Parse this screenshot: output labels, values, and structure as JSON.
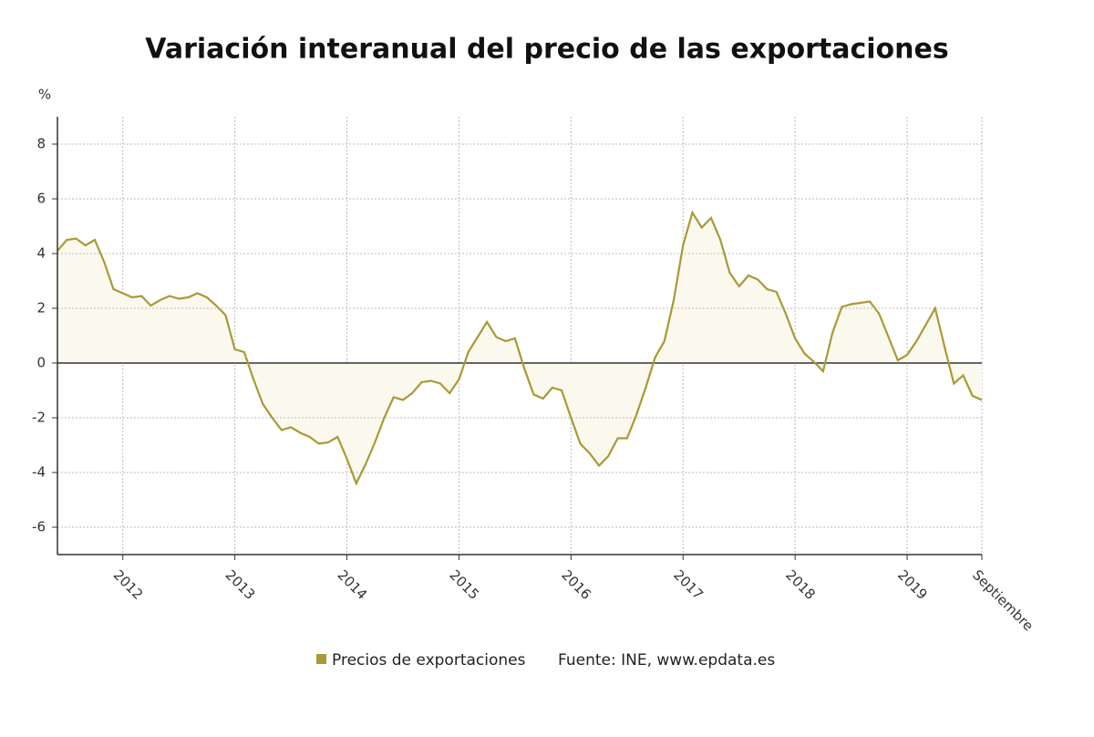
{
  "chart_data": {
    "type": "line",
    "title": "Variación interanual del precio de las exportaciones",
    "y_unit": "%",
    "source": "Fuente: INE, www.epdata.es",
    "categories": [
      null,
      null,
      null,
      null,
      null,
      null,
      null,
      "2012",
      null,
      null,
      null,
      null,
      null,
      null,
      null,
      null,
      null,
      null,
      null,
      "2013",
      null,
      null,
      null,
      null,
      null,
      null,
      null,
      null,
      null,
      null,
      null,
      "2014",
      null,
      null,
      null,
      null,
      null,
      null,
      null,
      null,
      null,
      null,
      null,
      "2015",
      null,
      null,
      null,
      null,
      null,
      null,
      null,
      null,
      null,
      null,
      null,
      "2016",
      null,
      null,
      null,
      null,
      null,
      null,
      null,
      null,
      null,
      null,
      null,
      "2017",
      null,
      null,
      null,
      null,
      null,
      null,
      null,
      null,
      null,
      null,
      null,
      "2018",
      null,
      null,
      null,
      null,
      null,
      null,
      null,
      null,
      null,
      null,
      null,
      "2019",
      null,
      null,
      null,
      null,
      null,
      null,
      null,
      "Septiembre"
    ],
    "series": [
      {
        "name": "Precios de exportaciones",
        "color": "#a89a35",
        "values": [
          4.1,
          4.5,
          4.55,
          4.3,
          4.5,
          3.7,
          2.7,
          2.55,
          2.4,
          2.45,
          2.1,
          2.3,
          2.45,
          2.35,
          2.4,
          2.55,
          2.4,
          2.1,
          1.75,
          0.5,
          0.4,
          -0.6,
          -1.5,
          -2.0,
          -2.45,
          -2.35,
          -2.55,
          -2.7,
          -2.95,
          -2.9,
          -2.7,
          -3.5,
          -4.4,
          -3.7,
          -2.9,
          -2.0,
          -1.25,
          -1.35,
          -1.1,
          -0.7,
          -0.65,
          -0.75,
          -1.1,
          -0.6,
          0.4,
          0.95,
          1.5,
          0.95,
          0.8,
          0.9,
          -0.2,
          -1.15,
          -1.3,
          -0.9,
          -1.0,
          -2.0,
          -2.95,
          -3.3,
          -3.75,
          -3.4,
          -2.75,
          -2.75,
          -1.9,
          -0.9,
          0.2,
          0.8,
          2.3,
          4.3,
          5.5,
          4.95,
          5.3,
          4.5,
          3.3,
          2.8,
          3.2,
          3.05,
          2.7,
          2.6,
          1.8,
          0.9,
          0.35,
          0.05,
          -0.3,
          1.1,
          2.05,
          2.15,
          2.2,
          2.25,
          1.8,
          0.95,
          0.1,
          0.3,
          0.8,
          1.4,
          2.0,
          0.6,
          -0.75,
          -0.45,
          -1.2,
          -1.35
        ]
      }
    ],
    "ylim": [
      -7,
      9
    ],
    "yticks": [
      -6,
      -4,
      -2,
      0,
      2,
      4,
      6,
      8
    ],
    "grid": true,
    "area_fill": "#fbf8ee"
  }
}
